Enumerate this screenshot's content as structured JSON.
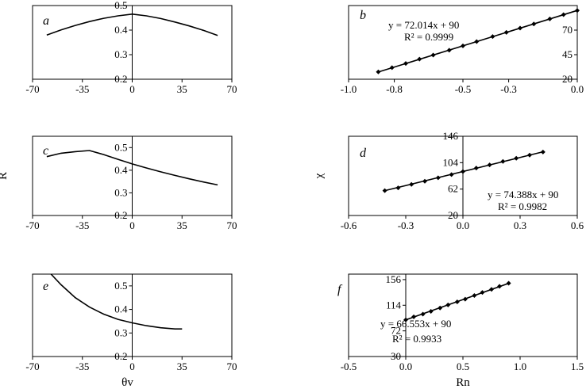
{
  "chart_data": [
    {
      "type": "line",
      "panel_label": "a",
      "xlim": [
        -70,
        70
      ],
      "ylim": [
        0.2,
        0.5
      ],
      "x_ticks": [
        -70,
        -35,
        0,
        35,
        70
      ],
      "y_ticks": [
        0.2,
        0.3,
        0.4,
        0.5
      ],
      "x_tick_labels": [
        "-70",
        "-35",
        "0",
        "35",
        "70"
      ],
      "y_tick_labels": [
        "0.2",
        "0.3",
        "0.4",
        "0.5"
      ],
      "xlabel": "",
      "ylabel": "",
      "series": [
        {
          "x": [
            -60,
            -50,
            -40,
            -30,
            -20,
            -10,
            0,
            10,
            20,
            30,
            40,
            50,
            60
          ],
          "y": [
            0.38,
            0.401,
            0.419,
            0.435,
            0.448,
            0.458,
            0.465,
            0.458,
            0.447,
            0.433,
            0.417,
            0.399,
            0.378
          ]
        }
      ]
    },
    {
      "type": "scatter",
      "panel_label": "b",
      "xlim": [
        -1.0,
        0.0
      ],
      "ylim": [
        20,
        95
      ],
      "x_ticks": [
        -1.0,
        -0.8,
        -0.5,
        -0.3,
        0.0
      ],
      "y_ticks": [
        20,
        45,
        70
      ],
      "x_tick_labels": [
        "-1.0",
        "-0.8",
        "-0.5",
        "-0.3",
        "0.0"
      ],
      "y_tick_labels": [
        "20",
        "45",
        "70"
      ],
      "xlabel": "",
      "ylabel": "",
      "equation": "y = 72.014x + 90",
      "r2": "R² = 0.9999",
      "series": [
        {
          "x": [
            -0.87,
            -0.81,
            -0.75,
            -0.69,
            -0.63,
            -0.56,
            -0.5,
            -0.44,
            -0.37,
            -0.31,
            -0.25,
            -0.19,
            -0.12,
            -0.06,
            0.0
          ],
          "y": [
            27.5,
            31.8,
            36.0,
            40.5,
            44.6,
            49.5,
            54.0,
            58.3,
            63.4,
            67.7,
            72.0,
            76.3,
            81.4,
            85.7,
            90.0
          ]
        }
      ],
      "fit": {
        "slope": 72.014,
        "intercept": 90
      }
    },
    {
      "type": "line",
      "panel_label": "c",
      "xlim": [
        -70,
        70
      ],
      "ylim": [
        0.2,
        0.55
      ],
      "x_ticks": [
        -70,
        -35,
        0,
        35,
        70
      ],
      "y_ticks": [
        0.2,
        0.3,
        0.4,
        0.5
      ],
      "x_tick_labels": [
        "-70",
        "-35",
        "0",
        "35",
        "70"
      ],
      "y_tick_labels": [
        "0.2",
        "0.3",
        "0.4",
        "0.5"
      ],
      "xlabel": "",
      "ylabel": "R",
      "series": [
        {
          "x": [
            -60,
            -50,
            -40,
            -30,
            -20,
            -10,
            0,
            10,
            20,
            30,
            40,
            50,
            60
          ],
          "y": [
            0.46,
            0.475,
            0.482,
            0.487,
            0.469,
            0.448,
            0.428,
            0.41,
            0.393,
            0.377,
            0.362,
            0.348,
            0.335
          ]
        }
      ]
    },
    {
      "type": "scatter",
      "panel_label": "d",
      "xlim": [
        -0.6,
        0.6
      ],
      "ylim": [
        20,
        146
      ],
      "x_ticks": [
        -0.6,
        -0.3,
        0.0,
        0.3,
        0.6
      ],
      "y_ticks": [
        20,
        62,
        104,
        146
      ],
      "x_tick_labels": [
        "-0.6",
        "-0.3",
        "0.0",
        "0.3",
        "0.6"
      ],
      "y_tick_labels": [
        "20",
        "62",
        "104",
        "146"
      ],
      "xlabel": "",
      "ylabel": "χ",
      "equation": "y = 74.388x + 90",
      "r2": "R² = 0.9982",
      "series": [
        {
          "x": [
            -0.41,
            -0.34,
            -0.27,
            -0.2,
            -0.13,
            -0.06,
            0.0,
            0.07,
            0.14,
            0.21,
            0.28,
            0.35,
            0.42
          ],
          "y": [
            59.5,
            64.0,
            69.5,
            74.5,
            80.0,
            85.0,
            90.0,
            95.5,
            100.5,
            106.0,
            111.0,
            116.0,
            121.0
          ]
        }
      ],
      "fit": {
        "slope": 74.388,
        "intercept": 90
      }
    },
    {
      "type": "line",
      "panel_label": "e",
      "xlim": [
        -70,
        70
      ],
      "ylim": [
        0.2,
        0.55
      ],
      "x_ticks": [
        -70,
        -35,
        0,
        35,
        70
      ],
      "y_ticks": [
        0.2,
        0.3,
        0.4,
        0.5
      ],
      "x_tick_labels": [
        "-70",
        "-35",
        "0",
        "35",
        "70"
      ],
      "y_tick_labels": [
        "0.2",
        "0.3",
        "0.4",
        "0.5"
      ],
      "xlabel": "θv",
      "ylabel": "",
      "series": [
        {
          "x": [
            -57,
            -50,
            -40,
            -30,
            -20,
            -10,
            0,
            10,
            20,
            30,
            35
          ],
          "y": [
            0.55,
            0.505,
            0.45,
            0.41,
            0.38,
            0.358,
            0.343,
            0.331,
            0.322,
            0.317,
            0.317
          ]
        }
      ]
    },
    {
      "type": "scatter",
      "panel_label": "f",
      "xlim": [
        -0.5,
        1.5
      ],
      "ylim": [
        30,
        165
      ],
      "x_ticks": [
        -0.5,
        0.0,
        0.5,
        1.0,
        1.5
      ],
      "y_ticks": [
        30,
        72,
        114,
        156
      ],
      "x_tick_labels": [
        "-0.5",
        "0.0",
        "0.5",
        "1.0",
        "1.5"
      ],
      "y_tick_labels": [
        "30",
        "72",
        "114",
        "156"
      ],
      "xlabel": "Rn",
      "ylabel": "",
      "equation": "y = 66.553x + 90",
      "r2": "R² = 0.9933",
      "series": [
        {
          "x": [
            0.0,
            0.07,
            0.15,
            0.22,
            0.3,
            0.37,
            0.45,
            0.52,
            0.6,
            0.67,
            0.75,
            0.82,
            0.9
          ],
          "y": [
            90,
            95,
            99.5,
            104,
            109.5,
            114.5,
            119.5,
            124,
            130,
            135,
            140,
            145,
            150
          ]
        }
      ],
      "fit": {
        "slope": 66.553,
        "intercept": 90
      }
    }
  ]
}
